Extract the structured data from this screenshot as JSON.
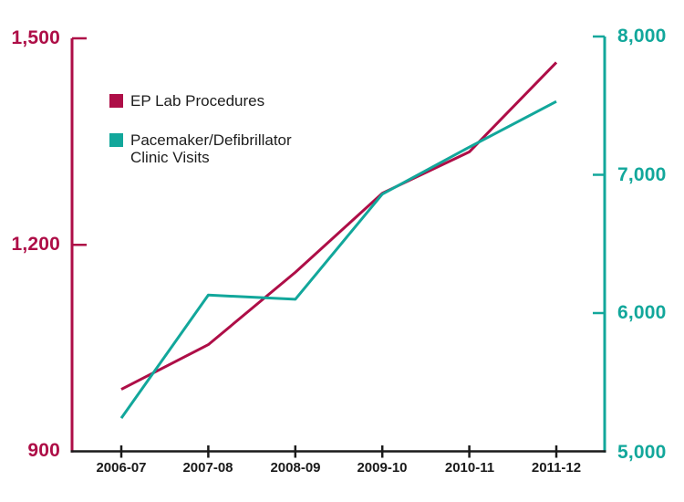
{
  "chart_data": {
    "type": "line",
    "title": "",
    "categories": [
      "2006-07",
      "2007-08",
      "2008-09",
      "2009-10",
      "2010-11",
      "2011-12"
    ],
    "series": [
      {
        "name": "EP Lab Procedures",
        "axis": "left",
        "color": "#AE0E47",
        "values": [
          990,
          1055,
          1160,
          1275,
          1335,
          1465
        ]
      },
      {
        "name": "Pacemaker/Defibrillator Clinic Visits",
        "axis": "right",
        "color": "#12A79B",
        "values": [
          5240,
          6130,
          6100,
          6860,
          7200,
          7530
        ]
      }
    ],
    "left_axis": {
      "min": 900,
      "max": 1500,
      "tick_values": [
        900,
        1200,
        1500
      ],
      "tick_labels": [
        "900",
        "1,200",
        "1,500"
      ],
      "color": "#AE0E47"
    },
    "right_axis": {
      "min": 5000,
      "max": 8000,
      "tick_values": [
        5000,
        6000,
        7000,
        8000
      ],
      "tick_labels": [
        "5,000",
        "6,000",
        "7,000",
        "8,000"
      ],
      "color": "#12A79B"
    },
    "x_axis_color": "#1a1a1a",
    "grid": false,
    "legend_position": "inside-top-left"
  },
  "legend": {
    "items": [
      {
        "label": "EP Lab Procedures",
        "color": "#AE0E47"
      },
      {
        "label": "Pacemaker/Defibrillator\nClinic Visits",
        "color": "#12A79B"
      }
    ]
  }
}
